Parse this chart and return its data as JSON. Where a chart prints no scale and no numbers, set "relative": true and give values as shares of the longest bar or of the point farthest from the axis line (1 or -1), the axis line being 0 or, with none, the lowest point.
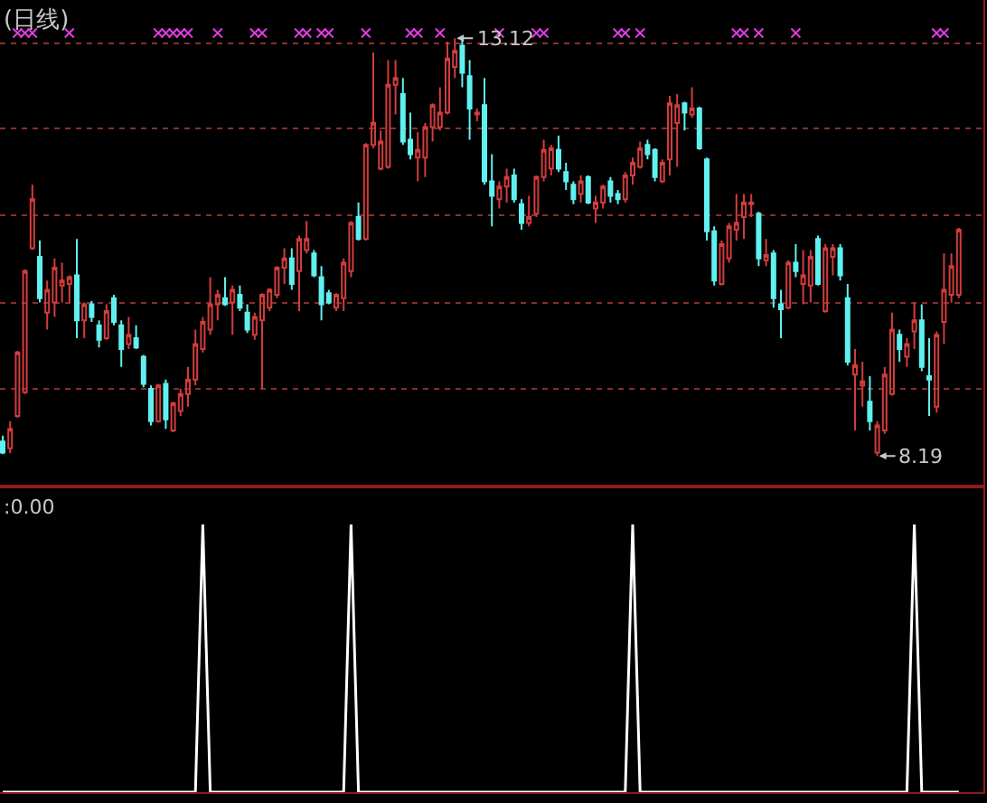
{
  "chart_data": [
    {
      "type": "candlestick",
      "title": "(日线)",
      "categories": [
        null,
        null,
        null,
        null,
        null,
        null,
        null,
        null,
        null,
        null,
        null,
        null,
        null,
        null,
        null,
        null,
        null,
        null,
        null,
        null,
        null,
        null,
        null,
        null,
        null,
        null,
        null,
        null,
        null,
        null,
        null,
        null,
        null,
        null,
        null,
        null,
        null,
        null,
        null,
        null,
        null,
        null,
        null,
        null,
        null,
        null,
        null,
        null,
        null,
        null,
        null,
        null,
        null,
        null,
        null,
        null,
        null,
        null,
        null,
        null,
        null,
        null,
        null,
        null,
        null,
        null,
        null,
        null,
        null,
        null,
        null,
        null,
        null,
        null,
        null,
        null,
        null,
        null,
        null,
        null,
        null,
        null,
        null,
        null,
        null,
        null,
        null,
        null,
        null,
        null,
        null,
        null,
        null,
        null,
        null,
        null,
        null,
        null,
        null,
        null,
        null,
        null,
        null,
        null,
        null,
        null,
        null,
        null,
        null,
        null,
        null,
        null,
        null,
        null,
        null,
        null,
        null,
        null,
        null,
        null,
        null,
        null,
        null,
        null,
        null,
        null,
        null,
        null,
        null,
        null
      ],
      "series": [
        {
          "type": "candlestick",
          "ohlc": [
            [
              8.36,
              8.43,
              8.21,
              8.23
            ],
            [
              8.28,
              8.6,
              8.22,
              8.51
            ],
            [
              8.66,
              9.43,
              8.64,
              9.41
            ],
            [
              8.94,
              10.39,
              8.92,
              10.37
            ],
            [
              10.64,
              11.39,
              10.62,
              11.22
            ],
            [
              10.54,
              10.73,
              10.0,
              10.05
            ],
            [
              9.88,
              10.26,
              9.68,
              10.15
            ],
            [
              10.0,
              10.52,
              9.83,
              10.41
            ],
            [
              10.2,
              10.47,
              10.0,
              10.26
            ],
            [
              10.22,
              10.32,
              10.0,
              10.3
            ],
            [
              10.32,
              10.75,
              9.58,
              9.79
            ],
            [
              9.79,
              10.0,
              9.58,
              9.98
            ],
            [
              9.98,
              10.02,
              9.77,
              9.83
            ],
            [
              9.73,
              9.79,
              9.47,
              9.56
            ],
            [
              9.58,
              9.98,
              9.56,
              9.9
            ],
            [
              10.05,
              10.09,
              9.73,
              9.77
            ],
            [
              9.73,
              9.79,
              9.24,
              9.45
            ],
            [
              9.51,
              9.83,
              9.45,
              9.62
            ],
            [
              9.58,
              9.73,
              9.45,
              9.47
            ],
            [
              9.36,
              9.38,
              9.0,
              9.04
            ],
            [
              8.98,
              9.02,
              8.55,
              8.6
            ],
            [
              8.6,
              9.04,
              8.58,
              9.02
            ],
            [
              9.04,
              9.09,
              8.51,
              8.62
            ],
            [
              8.49,
              8.83,
              8.47,
              8.81
            ],
            [
              8.72,
              8.98,
              8.66,
              8.92
            ],
            [
              8.92,
              9.24,
              8.77,
              9.09
            ],
            [
              9.09,
              9.68,
              9.02,
              9.51
            ],
            [
              9.45,
              9.83,
              9.41,
              9.77
            ],
            [
              9.68,
              10.3,
              9.62,
              9.98
            ],
            [
              9.98,
              10.15,
              9.79,
              10.09
            ],
            [
              10.05,
              10.3,
              9.96,
              9.98
            ],
            [
              10.0,
              10.2,
              9.62,
              10.15
            ],
            [
              10.09,
              10.2,
              9.9,
              9.94
            ],
            [
              9.88,
              9.98,
              9.64,
              9.68
            ],
            [
              9.62,
              9.88,
              9.56,
              9.83
            ],
            [
              9.79,
              10.11,
              8.98,
              10.09
            ],
            [
              9.94,
              10.17,
              9.9,
              10.15
            ],
            [
              10.09,
              10.43,
              10.05,
              10.41
            ],
            [
              10.41,
              10.64,
              10.22,
              10.52
            ],
            [
              10.52,
              10.64,
              10.15,
              10.22
            ],
            [
              10.37,
              10.79,
              9.9,
              10.75
            ],
            [
              10.62,
              10.96,
              10.58,
              10.75
            ],
            [
              10.58,
              10.62,
              10.3,
              10.32
            ],
            [
              10.3,
              10.43,
              9.79,
              9.98
            ],
            [
              10.11,
              10.15,
              9.98,
              10.0
            ],
            [
              9.94,
              10.11,
              9.9,
              10.09
            ],
            [
              10.05,
              10.52,
              9.9,
              10.47
            ],
            [
              10.37,
              10.96,
              10.3,
              10.94
            ],
            [
              11.01,
              11.18,
              10.73,
              10.75
            ],
            [
              10.75,
              11.88,
              10.73,
              11.86
            ],
            [
              11.86,
              12.95,
              11.82,
              12.12
            ],
            [
              11.58,
              12.03,
              11.56,
              11.9
            ],
            [
              11.6,
              12.86,
              11.58,
              12.57
            ],
            [
              12.57,
              12.86,
              12.22,
              12.65
            ],
            [
              12.46,
              12.65,
              11.86,
              11.9
            ],
            [
              11.92,
              12.24,
              11.69,
              11.75
            ],
            [
              11.71,
              12.01,
              11.43,
              11.8
            ],
            [
              11.71,
              12.12,
              11.48,
              12.07
            ],
            [
              12.07,
              12.35,
              11.9,
              12.33
            ],
            [
              12.07,
              12.54,
              12.03,
              12.24
            ],
            [
              12.24,
              13.08,
              12.22,
              12.88
            ],
            [
              12.78,
              13.12,
              12.65,
              12.97
            ],
            [
              13.03,
              13.1,
              12.54,
              12.71
            ],
            [
              12.67,
              12.86,
              11.92,
              12.29
            ],
            [
              12.22,
              12.29,
              12.14,
              12.24
            ],
            [
              12.33,
              12.65,
              11.39,
              11.43
            ],
            [
              11.43,
              11.75,
              10.9,
              11.26
            ],
            [
              11.22,
              11.43,
              11.11,
              11.37
            ],
            [
              11.37,
              11.58,
              11.18,
              11.48
            ],
            [
              11.5,
              11.58,
              11.18,
              11.22
            ],
            [
              11.16,
              11.22,
              10.86,
              10.94
            ],
            [
              10.94,
              11.26,
              10.9,
              11.01
            ],
            [
              11.05,
              11.5,
              11.01,
              11.48
            ],
            [
              11.48,
              11.92,
              11.43,
              11.8
            ],
            [
              11.58,
              11.86,
              11.5,
              11.82
            ],
            [
              11.8,
              11.97,
              11.54,
              11.58
            ],
            [
              11.54,
              11.65,
              11.33,
              11.43
            ],
            [
              11.39,
              11.43,
              11.16,
              11.22
            ],
            [
              11.28,
              11.5,
              11.18,
              11.43
            ],
            [
              11.48,
              11.5,
              11.16,
              11.18
            ],
            [
              11.11,
              11.26,
              10.94,
              11.18
            ],
            [
              11.18,
              11.39,
              11.11,
              11.37
            ],
            [
              11.43,
              11.48,
              11.18,
              11.26
            ],
            [
              11.28,
              11.33,
              11.16,
              11.22
            ],
            [
              11.22,
              11.54,
              11.18,
              11.5
            ],
            [
              11.5,
              11.71,
              11.39,
              11.65
            ],
            [
              11.6,
              11.9,
              11.58,
              11.82
            ],
            [
              11.86,
              11.92,
              11.69,
              11.75
            ],
            [
              11.8,
              11.82,
              11.43,
              11.48
            ],
            [
              11.43,
              11.69,
              11.41,
              11.65
            ],
            [
              11.69,
              12.44,
              11.5,
              12.35
            ],
            [
              12.12,
              12.46,
              11.6,
              12.33
            ],
            [
              12.35,
              12.37,
              12.03,
              12.24
            ],
            [
              12.22,
              12.54,
              12.18,
              12.29
            ],
            [
              12.29,
              12.31,
              11.8,
              11.82
            ],
            [
              11.69,
              11.71,
              10.73,
              10.84
            ],
            [
              10.84,
              10.9,
              10.2,
              10.26
            ],
            [
              10.22,
              10.73,
              10.2,
              10.69
            ],
            [
              10.52,
              10.94,
              10.47,
              10.9
            ],
            [
              10.86,
              11.28,
              10.73,
              10.94
            ],
            [
              11.01,
              11.28,
              10.75,
              11.18
            ],
            [
              11.16,
              11.28,
              11.01,
              11.18
            ],
            [
              11.05,
              11.07,
              10.43,
              10.52
            ],
            [
              10.5,
              10.75,
              10.43,
              10.56
            ],
            [
              10.58,
              10.62,
              9.94,
              10.05
            ],
            [
              9.98,
              10.15,
              9.58,
              9.92
            ],
            [
              9.94,
              10.5,
              9.92,
              10.47
            ],
            [
              10.47,
              10.69,
              10.3,
              10.37
            ],
            [
              10.22,
              10.62,
              9.98,
              10.32
            ],
            [
              10.2,
              10.62,
              10.0,
              10.54
            ],
            [
              10.75,
              10.79,
              10.2,
              10.22
            ],
            [
              9.9,
              10.69,
              9.88,
              10.64
            ],
            [
              10.54,
              10.69,
              10.32,
              10.64
            ],
            [
              10.64,
              10.69,
              10.26,
              10.32
            ],
            [
              10.05,
              10.22,
              9.26,
              9.3
            ],
            [
              9.15,
              9.45,
              8.49,
              9.26
            ],
            [
              9.02,
              9.3,
              8.77,
              9.07
            ],
            [
              8.83,
              9.13,
              8.49,
              8.6
            ],
            [
              8.23,
              8.6,
              8.19,
              8.55
            ],
            [
              8.49,
              9.24,
              8.45,
              9.15
            ],
            [
              8.92,
              9.88,
              8.9,
              9.68
            ],
            [
              9.62,
              9.68,
              9.3,
              9.45
            ],
            [
              9.36,
              9.58,
              9.24,
              9.51
            ],
            [
              9.66,
              10.0,
              9.45,
              9.79
            ],
            [
              9.79,
              9.98,
              9.19,
              9.24
            ],
            [
              9.13,
              9.58,
              8.66,
              9.09
            ],
            [
              8.77,
              9.66,
              8.7,
              9.62
            ],
            [
              9.77,
              10.58,
              9.51,
              10.15
            ],
            [
              10.09,
              10.58,
              10.0,
              10.43
            ],
            [
              10.09,
              10.88,
              10.05,
              10.86
            ]
          ],
          "colors": [
            "#60f0f0",
            "#d23c3c",
            "#d23c3c",
            "#d23c3c",
            "#d23c3c",
            "#60f0f0",
            "#d23c3c",
            "#d23c3c",
            "#d23c3c",
            "#d23c3c",
            "#60f0f0",
            "#d23c3c",
            "#60f0f0",
            "#60f0f0",
            "#d23c3c",
            "#60f0f0",
            "#60f0f0",
            "#d23c3c",
            "#60f0f0",
            "#60f0f0",
            "#60f0f0",
            "#d23c3c",
            "#60f0f0",
            "#d23c3c",
            "#d23c3c",
            "#d23c3c",
            "#d23c3c",
            "#d23c3c",
            "#d23c3c",
            "#d23c3c",
            "#60f0f0",
            "#d23c3c",
            "#60f0f0",
            "#60f0f0",
            "#d23c3c",
            "#d23c3c",
            "#d23c3c",
            "#d23c3c",
            "#d23c3c",
            "#60f0f0",
            "#d23c3c",
            "#d23c3c",
            "#60f0f0",
            "#60f0f0",
            "#60f0f0",
            "#d23c3c",
            "#d23c3c",
            "#d23c3c",
            "#60f0f0",
            "#d23c3c",
            "#d23c3c",
            "#d23c3c",
            "#d23c3c",
            "#d23c3c",
            "#60f0f0",
            "#60f0f0",
            "#d23c3c",
            "#d23c3c",
            "#d23c3c",
            "#d23c3c",
            "#d23c3c",
            "#d23c3c",
            "#60f0f0",
            "#60f0f0",
            "#d23c3c",
            "#60f0f0",
            "#60f0f0",
            "#d23c3c",
            "#d23c3c",
            "#60f0f0",
            "#60f0f0",
            "#d23c3c",
            "#d23c3c",
            "#d23c3c",
            "#d23c3c",
            "#60f0f0",
            "#60f0f0",
            "#60f0f0",
            "#d23c3c",
            "#60f0f0",
            "#d23c3c",
            "#d23c3c",
            "#60f0f0",
            "#60f0f0",
            "#d23c3c",
            "#d23c3c",
            "#d23c3c",
            "#60f0f0",
            "#60f0f0",
            "#d23c3c",
            "#d23c3c",
            "#d23c3c",
            "#60f0f0",
            "#d23c3c",
            "#60f0f0",
            "#60f0f0",
            "#60f0f0",
            "#d23c3c",
            "#d23c3c",
            "#d23c3c",
            "#d23c3c",
            "#d23c3c",
            "#60f0f0",
            "#d23c3c",
            "#60f0f0",
            "#60f0f0",
            "#d23c3c",
            "#60f0f0",
            "#d23c3c",
            "#d23c3c",
            "#60f0f0",
            "#d23c3c",
            "#d23c3c",
            "#60f0f0",
            "#60f0f0",
            "#d23c3c",
            "#d23c3c",
            "#60f0f0",
            "#d23c3c",
            "#d23c3c",
            "#d23c3c",
            "#60f0f0",
            "#d23c3c",
            "#d23c3c",
            "#60f0f0",
            "#60f0f0",
            "#d23c3c",
            "#d23c3c",
            "#d23c3c",
            "#d23c3c"
          ]
        },
        {
          "type": "scatter",
          "color": "#e03ce0",
          "marker": "cross",
          "values": [
            null,
            null,
            13.18,
            13.18,
            13.18,
            null,
            null,
            null,
            null,
            13.18,
            null,
            null,
            null,
            null,
            null,
            null,
            null,
            null,
            null,
            null,
            null,
            13.18,
            13.18,
            13.18,
            13.18,
            13.18,
            null,
            null,
            null,
            13.18,
            null,
            null,
            null,
            null,
            13.18,
            13.18,
            null,
            null,
            null,
            null,
            13.18,
            13.18,
            null,
            13.18,
            13.18,
            null,
            null,
            null,
            null,
            13.18,
            null,
            null,
            null,
            null,
            null,
            13.18,
            13.18,
            null,
            null,
            13.18,
            null,
            null,
            null,
            null,
            null,
            null,
            null,
            13.18,
            null,
            null,
            null,
            null,
            13.18,
            13.18,
            null,
            null,
            null,
            null,
            null,
            null,
            null,
            null,
            null,
            13.18,
            13.18,
            null,
            13.18,
            null,
            null,
            null,
            null,
            null,
            null,
            null,
            null,
            null,
            null,
            null,
            null,
            13.18,
            13.18,
            null,
            13.18,
            null,
            null,
            null,
            null,
            13.18,
            null,
            null,
            null,
            null,
            null,
            null,
            null,
            null,
            null,
            null,
            null,
            null,
            null,
            null,
            null,
            null,
            null,
            null,
            13.18,
            13.18,
            null,
            null
          ]
        }
      ],
      "ylim": [
        7.85,
        13.57
      ],
      "yticks": [
        {
          "value": 13.06,
          "label": null
        },
        {
          "value": 12.05,
          "label": null
        },
        {
          "value": 11.03,
          "label": null
        },
        {
          "value": 10.0,
          "label": null
        },
        {
          "value": 8.98,
          "label": null
        }
      ],
      "grid": "y",
      "annotations": [
        {
          "text": "13.12",
          "y": 13.12
        },
        "8.19"
      ]
    },
    {
      "type": "line",
      "title": ":0.00",
      "relative": true,
      "color": "#ffffff",
      "categories": [
        null,
        null,
        null,
        null,
        null,
        null,
        null,
        null,
        null,
        null,
        null,
        null,
        null,
        null,
        null,
        null,
        null,
        null,
        null,
        null,
        null,
        null,
        null,
        null,
        null,
        null,
        null,
        null,
        null,
        null,
        null,
        null,
        null,
        null,
        null,
        null,
        null,
        null,
        null,
        null,
        null,
        null,
        null,
        null,
        null,
        null,
        null,
        null,
        null,
        null,
        null,
        null,
        null,
        null,
        null,
        null,
        null,
        null,
        null,
        null,
        null,
        null,
        null,
        null,
        null,
        null,
        null,
        null,
        null,
        null,
        null,
        null,
        null,
        null,
        null,
        null,
        null,
        null,
        null,
        null,
        null,
        null,
        null,
        null,
        null,
        null,
        null,
        null,
        null,
        null,
        null,
        null,
        null,
        null,
        null,
        null,
        null,
        null,
        null,
        null,
        null,
        null,
        null,
        null,
        null,
        null,
        null,
        null,
        null,
        null,
        null,
        null,
        null,
        null,
        null,
        null,
        null,
        null,
        null,
        null,
        null,
        null,
        null,
        null,
        null,
        null,
        null,
        null,
        null,
        null
      ],
      "values": [
        0,
        0,
        0,
        0,
        0,
        0,
        0,
        0,
        0,
        0,
        0,
        0,
        0,
        0,
        0,
        0,
        0,
        0,
        0,
        0,
        0,
        0,
        0,
        0,
        0,
        0,
        0,
        1,
        0,
        0,
        0,
        0,
        0,
        0,
        0,
        0,
        0,
        0,
        0,
        0,
        0,
        0,
        0,
        0,
        0,
        0,
        0,
        1,
        0,
        0,
        0,
        0,
        0,
        0,
        0,
        0,
        0,
        0,
        0,
        0,
        0,
        0,
        0,
        0,
        0,
        0,
        0,
        0,
        0,
        0,
        0,
        0,
        0,
        0,
        0,
        0,
        0,
        0,
        0,
        0,
        0,
        0,
        0,
        0,
        0,
        1,
        0,
        0,
        0,
        0,
        0,
        0,
        0,
        0,
        0,
        0,
        0,
        0,
        0,
        0,
        0,
        0,
        0,
        0,
        0,
        0,
        0,
        0,
        0,
        0,
        0,
        0,
        0,
        0,
        0,
        0,
        0,
        0,
        0,
        0,
        0,
        0,
        0,
        1,
        0,
        0,
        0,
        0,
        0,
        0
      ]
    }
  ]
}
